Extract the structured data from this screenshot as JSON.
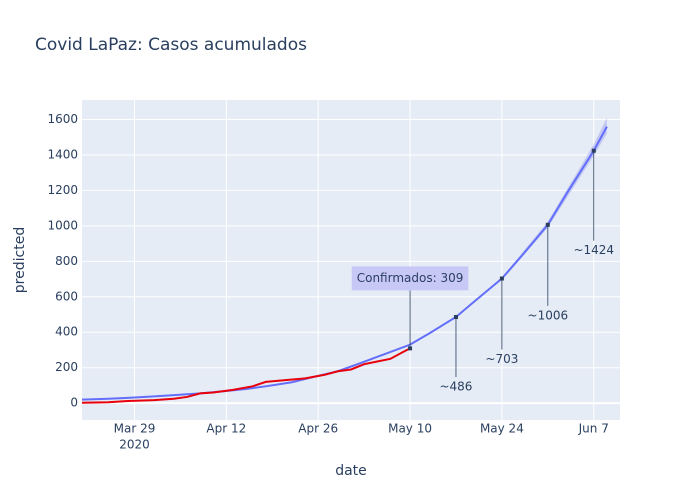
{
  "chart_data": {
    "type": "line",
    "title": "Covid LaPaz: Casos acumulados",
    "x_label": "date",
    "y_label": "predicted",
    "xlim": [
      "2020-03-21",
      "2020-06-11"
    ],
    "xticks": [
      {
        "value": "2020-03-29",
        "label": "Mar 29"
      },
      {
        "value": "2020-04-12",
        "label": "Apr 12"
      },
      {
        "value": "2020-04-26",
        "label": "Apr 26"
      },
      {
        "value": "2020-05-10",
        "label": "May 10"
      },
      {
        "value": "2020-05-24",
        "label": "May 24"
      },
      {
        "value": "2020-06-07",
        "label": "Jun 7"
      }
    ],
    "x_year": "2020",
    "ylim": [
      -95,
      1710
    ],
    "yticks": [
      0,
      200,
      400,
      600,
      800,
      1000,
      1200,
      1400,
      1600
    ],
    "grid": true,
    "band": {
      "color": "#aab0f0",
      "x": [
        "2020-05-24",
        "2020-05-31",
        "2020-06-07",
        "2020-06-09"
      ],
      "lower": [
        695,
        990,
        1395,
        1520
      ],
      "upper": [
        710,
        1025,
        1460,
        1610
      ]
    },
    "series": [
      {
        "color": "#636efa",
        "x": [
          "2020-03-21",
          "2020-03-25",
          "2020-03-28",
          "2020-04-01",
          "2020-04-04",
          "2020-04-08",
          "2020-04-11",
          "2020-04-15",
          "2020-04-18",
          "2020-04-22",
          "2020-04-25",
          "2020-04-29",
          "2020-05-02",
          "2020-05-06",
          "2020-05-10",
          "2020-05-13",
          "2020-05-17",
          "2020-05-20",
          "2020-05-24",
          "2020-05-27",
          "2020-05-31",
          "2020-06-03",
          "2020-06-07",
          "2020-06-09"
        ],
        "values": [
          20,
          25,
          30,
          38,
          45,
          55,
          65,
          80,
          95,
          118,
          145,
          180,
          220,
          275,
          330,
          395,
          486,
          580,
          703,
          830,
          1006,
          1190,
          1424,
          1560
        ]
      },
      {
        "color": "#e8000b",
        "x": [
          "2020-03-21",
          "2020-03-25",
          "2020-03-28",
          "2020-04-01",
          "2020-04-04",
          "2020-04-06",
          "2020-04-08",
          "2020-04-10",
          "2020-04-13",
          "2020-04-16",
          "2020-04-18",
          "2020-04-21",
          "2020-04-24",
          "2020-04-27",
          "2020-04-29",
          "2020-05-01",
          "2020-05-03",
          "2020-05-05",
          "2020-05-07",
          "2020-05-09",
          "2020-05-10"
        ],
        "values": [
          2,
          5,
          12,
          17,
          25,
          35,
          55,
          60,
          75,
          95,
          120,
          130,
          140,
          160,
          180,
          190,
          220,
          235,
          250,
          290,
          309
        ]
      }
    ],
    "annotations": [
      {
        "x": "2020-05-10",
        "y": 309,
        "text": "Confirmados: 309"
      },
      {
        "x": "2020-05-17",
        "y": 486,
        "text": "~486"
      },
      {
        "x": "2020-05-24",
        "y": 703,
        "text": "~703"
      },
      {
        "x": "2020-05-31",
        "y": 1006,
        "text": "~1006"
      },
      {
        "x": "2020-06-07",
        "y": 1424,
        "text": "~1424"
      }
    ]
  }
}
